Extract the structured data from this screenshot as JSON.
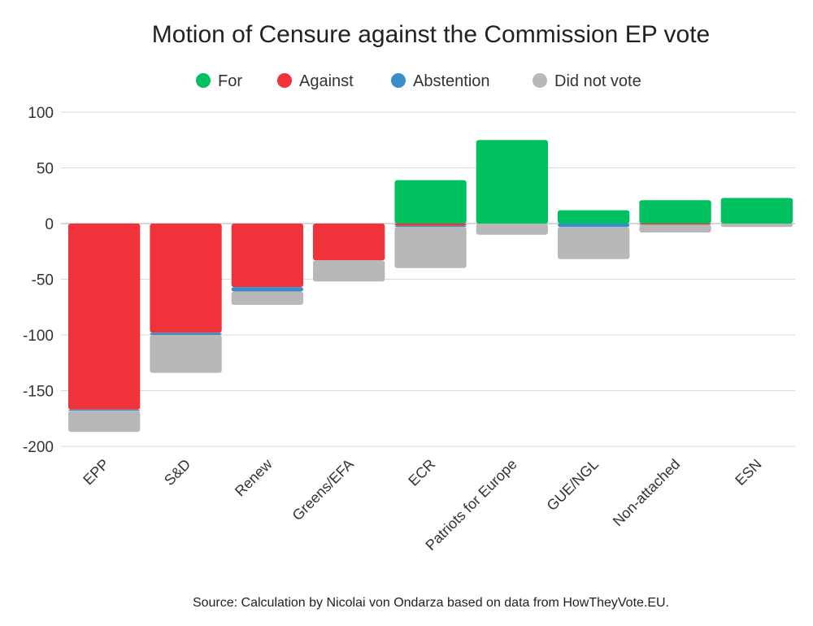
{
  "chart_data": {
    "type": "bar",
    "stacked": true,
    "title": "Motion of Censure against the Commission EP vote",
    "categories": [
      "EPP",
      "S&D",
      "Renew",
      "Greens/EFA",
      "ECR",
      "Patriots for Europe",
      "GUE/NGL",
      "Non-attached",
      "ESN"
    ],
    "series": [
      {
        "name": "For",
        "color": "#00c060",
        "values": [
          0,
          0,
          0,
          0,
          39,
          75,
          12,
          21,
          23
        ]
      },
      {
        "name": "Against",
        "color": "#f0333a",
        "values": [
          -167,
          -98,
          -57,
          -33,
          -2,
          0,
          0,
          -1,
          0
        ]
      },
      {
        "name": "Abstention",
        "color": "#3a8ec7",
        "values": [
          -1,
          -2,
          -4,
          0,
          -1,
          0,
          -3,
          0,
          0
        ]
      },
      {
        "name": "Did not vote",
        "color": "#b8b8b8",
        "values": [
          -19,
          -34,
          -12,
          -19,
          -37,
          -10,
          -29,
          -7,
          -3
        ]
      }
    ],
    "yticks": [
      100,
      50,
      0,
      -50,
      -100,
      -150,
      -200
    ],
    "ylim": [
      -200,
      100
    ],
    "grid": true,
    "legend_position": "top",
    "xlabel": "",
    "ylabel": ""
  },
  "source": "Source: Calculation by Nicolai von Ondarza based on data from HowTheyVote.EU."
}
